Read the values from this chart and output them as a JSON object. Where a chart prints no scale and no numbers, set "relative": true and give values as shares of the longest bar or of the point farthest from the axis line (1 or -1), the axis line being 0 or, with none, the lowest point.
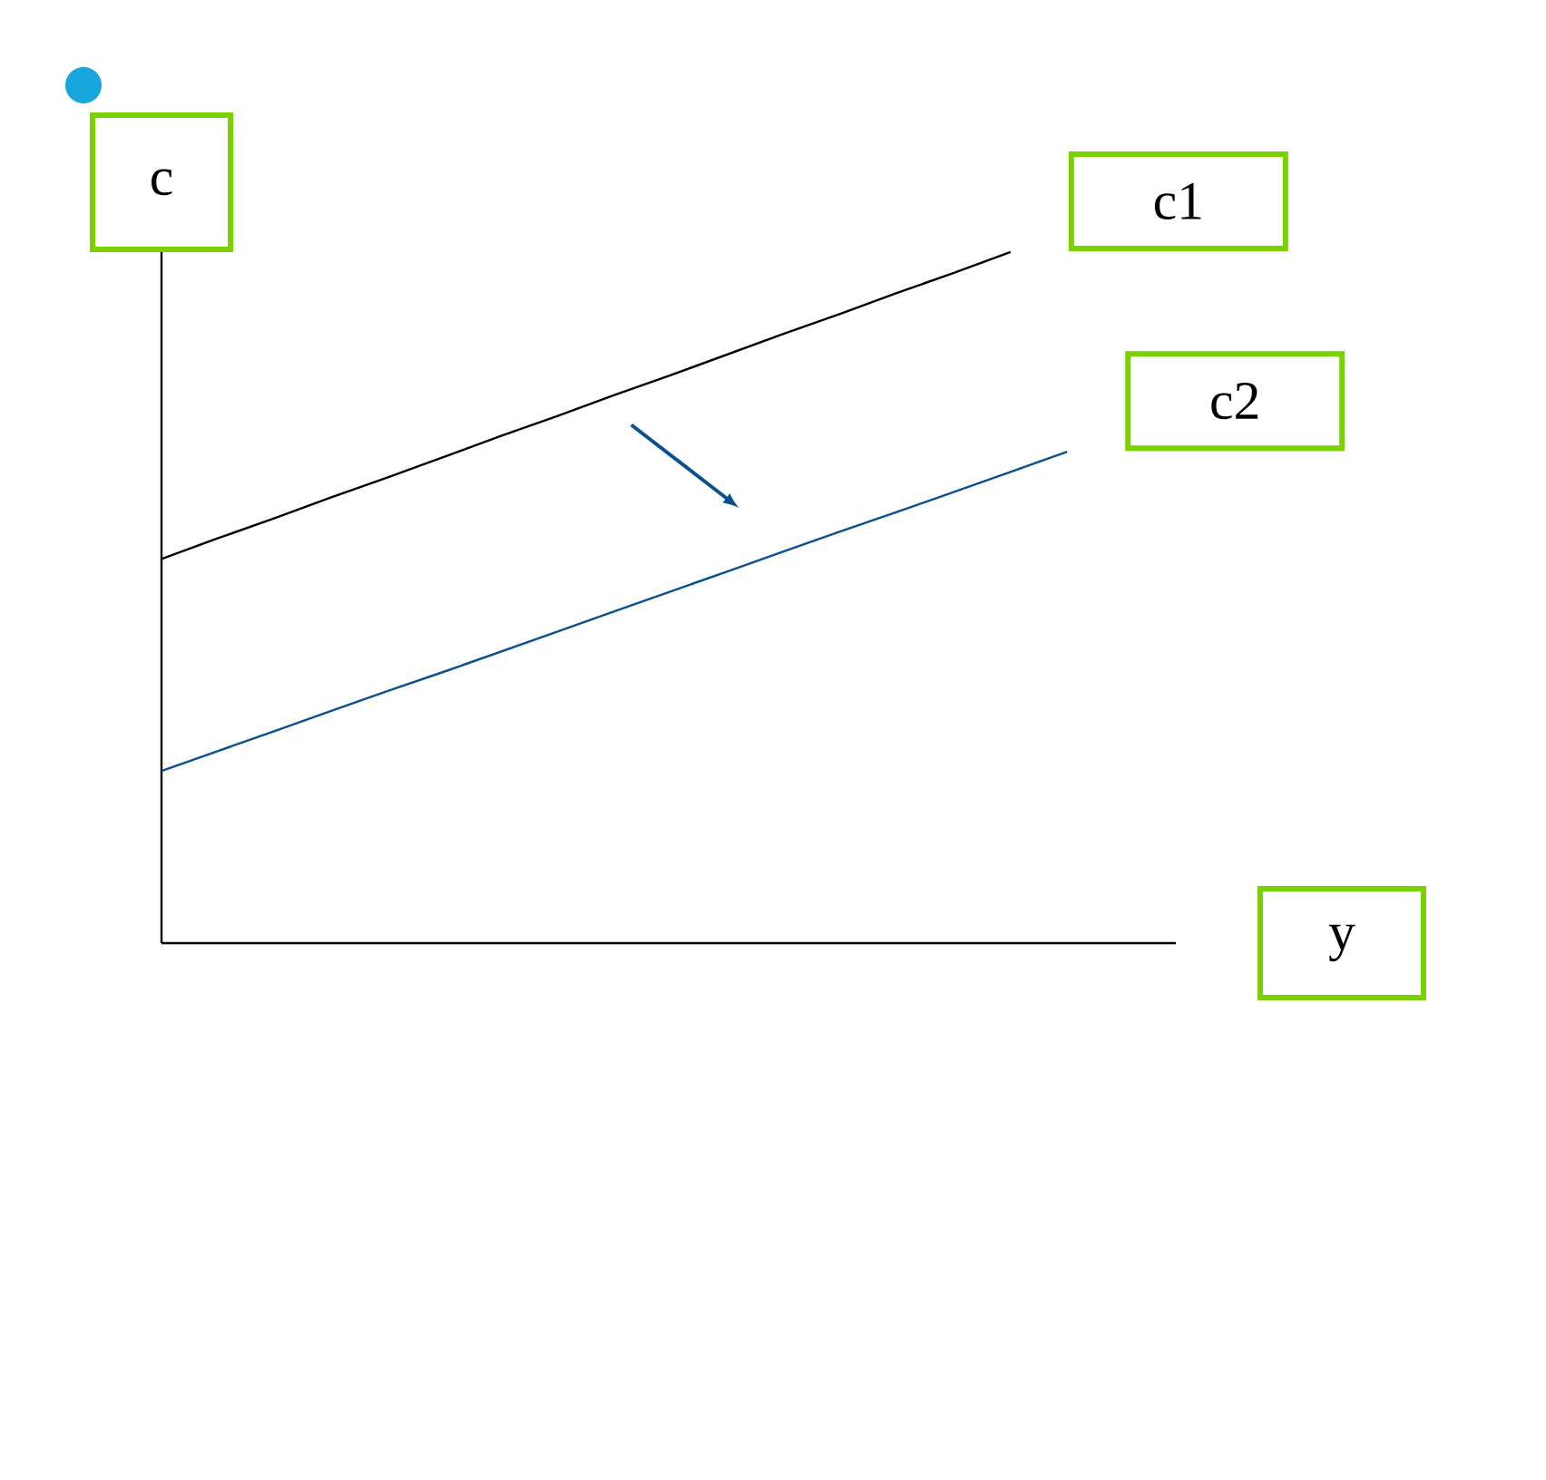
{
  "chart_data": {
    "type": "line",
    "relative": true,
    "xlabel": "y",
    "ylabel": "c",
    "marker": "none",
    "line_style": "solid",
    "categories": [
      null,
      null,
      null,
      null,
      null,
      null,
      null,
      null,
      null,
      null,
      null,
      null,
      null,
      null,
      null,
      null,
      null
    ],
    "series": [
      {
        "name": "c1",
        "color": "#000000",
        "values": [
          0.556,
          0.586,
          0.615,
          0.645,
          0.674,
          0.704,
          0.734,
          0.763,
          0.793,
          0.822,
          0.852,
          0.882,
          0.911,
          0.941,
          0.97,
          1.0,
          null
        ]
      },
      {
        "name": "c2",
        "color": "#0a5090",
        "values": [
          0.249,
          0.278,
          0.307,
          0.336,
          0.365,
          0.393,
          0.422,
          0.451,
          0.48,
          0.509,
          0.538,
          0.567,
          0.596,
          0.624,
          0.653,
          0.682,
          0.711
        ]
      }
    ]
  }
}
